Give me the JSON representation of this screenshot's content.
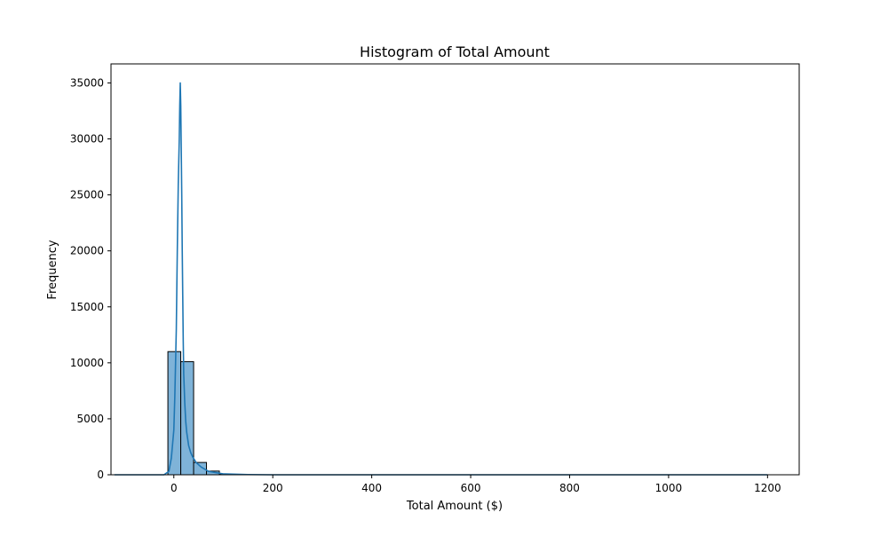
{
  "chart_data": {
    "type": "bar",
    "title": "Histogram of Total Amount",
    "xlabel": "Total Amount ($)",
    "ylabel": "Frequency",
    "xlim": [
      -127,
      1264
    ],
    "ylim": [
      0,
      36700
    ],
    "xticks": [
      0,
      200,
      400,
      600,
      800,
      1000,
      1200
    ],
    "xtick_labels": [
      "0",
      "200",
      "400",
      "600",
      "800",
      "1000",
      "1200"
    ],
    "yticks": [
      0,
      5000,
      10000,
      15000,
      20000,
      25000,
      30000,
      35000
    ],
    "ytick_labels": [
      "0",
      "5000",
      "10000",
      "15000",
      "20000",
      "25000",
      "30000",
      "35000"
    ],
    "bins": [
      {
        "x0": -12,
        "x1": 14,
        "count": 11000
      },
      {
        "x0": 14,
        "x1": 40,
        "count": 10100
      },
      {
        "x0": 40,
        "x1": 66,
        "count": 1100
      },
      {
        "x0": 66,
        "x1": 92,
        "count": 330
      },
      {
        "x0": 92,
        "x1": 118,
        "count": 40
      }
    ],
    "kde_line": {
      "x": [
        -120,
        -20,
        -10,
        -5,
        0,
        2,
        5,
        7,
        9,
        10,
        11,
        12,
        13,
        14,
        15,
        16,
        17,
        18,
        19,
        20,
        22,
        24,
        26,
        28,
        30,
        34,
        38,
        45,
        55,
        70,
        100,
        150,
        200,
        400,
        800,
        1200
      ],
      "y": [
        0,
        0,
        300,
        1500,
        4000,
        7000,
        13000,
        20000,
        26000,
        28000,
        30000,
        33000,
        35000,
        33000,
        29000,
        25000,
        20000,
        16000,
        12000,
        9000,
        6500,
        4800,
        3800,
        3200,
        2600,
        2000,
        1600,
        1100,
        700,
        300,
        80,
        20,
        0,
        0,
        0,
        0
      ]
    },
    "colors": {
      "bar_fill": "#7fb3d8",
      "bar_edge": "#000000",
      "line": "#1f77b4",
      "axes": "#000000",
      "background": "#ffffff"
    },
    "grid": false,
    "legend": "none"
  }
}
